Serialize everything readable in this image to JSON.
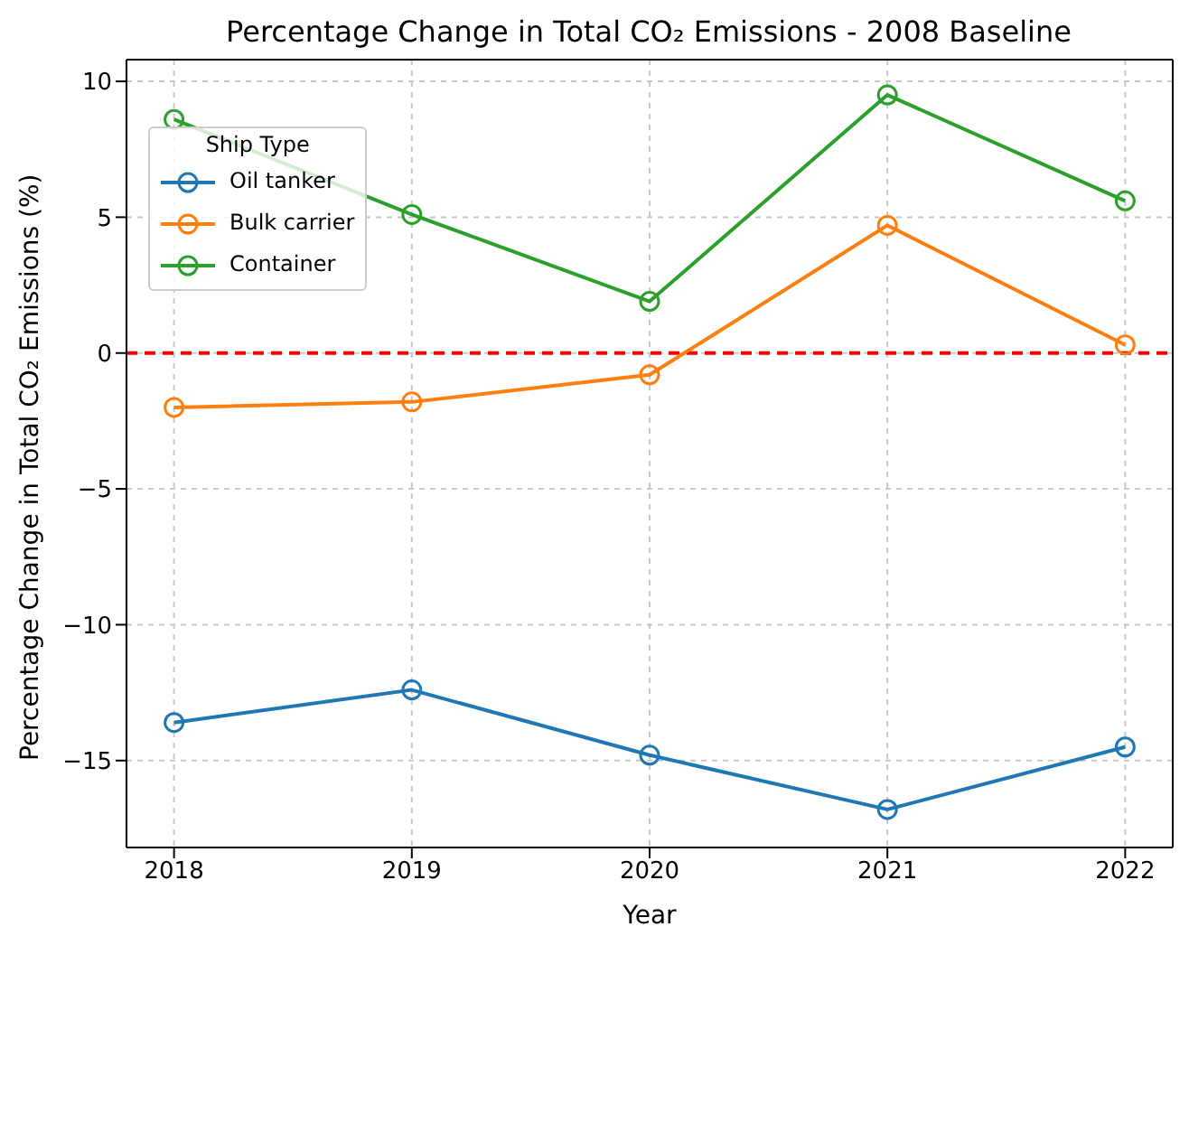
{
  "chart_data": {
    "type": "line",
    "title": "Percentage Change in Total CO₂ Emissions - 2008 Baseline",
    "xlabel": "Year",
    "ylabel": "Percentage Change in Total CO₂ Emissions (%)",
    "legend_title": "Ship Type",
    "x": [
      2018,
      2019,
      2020,
      2021,
      2022
    ],
    "series": [
      {
        "name": "Oil tanker",
        "color": "#1f77b4",
        "values": [
          -13.6,
          -12.4,
          -14.8,
          -16.8,
          -14.5
        ]
      },
      {
        "name": "Bulk carrier",
        "color": "#ff7f0e",
        "values": [
          -2.0,
          -1.8,
          -0.8,
          4.7,
          0.3
        ]
      },
      {
        "name": "Container",
        "color": "#2ca02c",
        "values": [
          8.6,
          5.1,
          1.9,
          9.5,
          5.6
        ]
      }
    ],
    "xlim": [
      2017.8,
      2022.2
    ],
    "xticks": [
      2018,
      2019,
      2020,
      2021,
      2022
    ],
    "ylim": [
      -18.2,
      10.8
    ],
    "yticks": [
      -15,
      -10,
      -5,
      0,
      5,
      10
    ],
    "ref_lines": [
      {
        "axis": "y",
        "value": 0,
        "color": "#ff0000",
        "line_style": "dashed"
      }
    ],
    "grid": true,
    "legend": "top left",
    "marker": "circle",
    "line_style": "solid"
  }
}
